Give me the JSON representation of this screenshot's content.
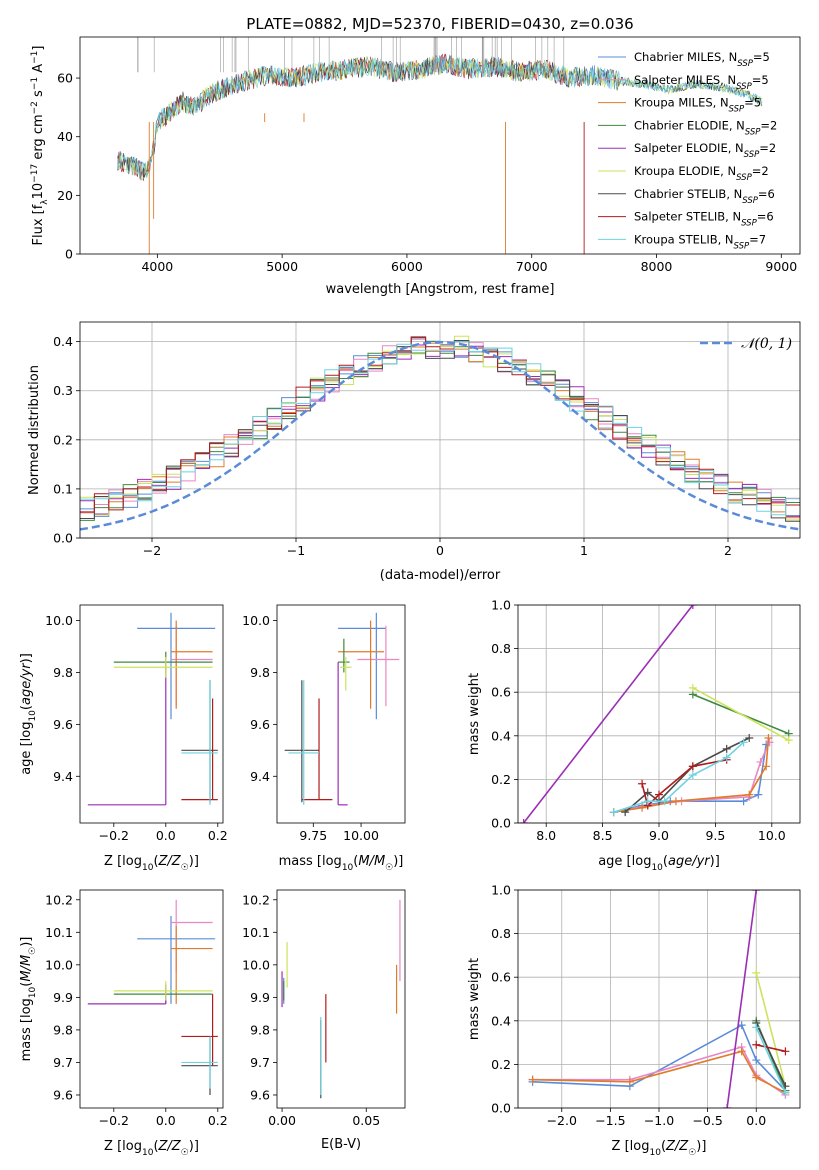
{
  "colors": {
    "chabrier_miles": "#5b8bd8",
    "salpeter_miles": "#e987c4",
    "kroupa_miles": "#e07b2c",
    "chabrier_elodie": "#3f8a3f",
    "salpeter_elodie": "#9a2fb5",
    "kroupa_elodie": "#cde35b",
    "chabrier_stelib": "#4a4a4a",
    "salpeter_stelib": "#b01c1c",
    "kroupa_stelib": "#6fd2e0",
    "normal": "#5b8bd8"
  },
  "chart_data": [
    {
      "id": "spectrum",
      "type": "line",
      "title": "PLATE=0882, MJD=52370, FIBERID=0430, z=0.036",
      "xlabel": "wavelength [Angstrom, rest frame]",
      "ylabel": "Flux [fλ10⁻¹⁷ erg cm⁻² s⁻¹ A⁻¹]",
      "xlim": [
        3380,
        9150
      ],
      "ylim": [
        0,
        74
      ],
      "xticks": [
        4000,
        5000,
        6000,
        7000,
        8000,
        9000
      ],
      "yticks": [
        0,
        20,
        40,
        60
      ],
      "legend_position": "top-right",
      "legend": [
        "Chabrier MILES, NSSP=5",
        "Salpeter MILES, NSSP=5",
        "Kroupa MILES, NSSP=5",
        "Chabrier ELODIE, NSSP=2",
        "Salpeter ELODIE, NSSP=2",
        "Kroupa ELODIE, NSSP=2",
        "Chabrier STELIB, NSSP=6",
        "Salpeter STELIB, NSSP=6",
        "Kroupa STELIB, NSSP=7"
      ],
      "continuum": {
        "x": [
          3680,
          3800,
          3900,
          3950,
          4000,
          4100,
          4200,
          4300,
          4400,
          4500,
          4700,
          4900,
          5100,
          5300,
          5500,
          5700,
          5900,
          6100,
          6300,
          6500,
          6700,
          6900,
          7100,
          7300,
          7500,
          7700,
          7900,
          8100,
          8300,
          8500,
          8700,
          8850
        ],
        "y": [
          32,
          30,
          28,
          30,
          45,
          48,
          52,
          50,
          54,
          56,
          59,
          61,
          60,
          62,
          63,
          64,
          62,
          63,
          65,
          63,
          64,
          62,
          63,
          60,
          61,
          59,
          58,
          56,
          58,
          57,
          55,
          52
        ]
      }
    },
    {
      "id": "residuals",
      "type": "histogram",
      "xlabel": "(data-model)/error",
      "ylabel": "Normed distribution",
      "xlim": [
        -2.5,
        2.5
      ],
      "ylim": [
        0,
        0.44
      ],
      "xticks": [
        -2,
        -1,
        0,
        1,
        2
      ],
      "yticks": [
        0.0,
        0.1,
        0.2,
        0.3,
        0.4
      ],
      "legend": [
        "𝒩(0, 1)"
      ],
      "legend_position": "top-right",
      "bin_width": 0.1,
      "bin_start": -2.5
    },
    {
      "id": "age_vs_z",
      "type": "errorbar",
      "xlabel": "Z [log10(Z/Z☉)]",
      "ylabel": "age  [log10(age/yr)]",
      "xlim": [
        -0.33,
        0.22
      ],
      "ylim": [
        9.22,
        10.06
      ],
      "xticks": [
        -0.2,
        0.0,
        0.2
      ],
      "yticks": [
        9.4,
        9.6,
        9.8,
        10.0
      ],
      "points": [
        {
          "model": "chabrier_miles",
          "x": 0.02,
          "xerr": [
            0.13,
            0.17
          ],
          "y": 9.97,
          "yerr": [
            0.35,
            0.06
          ]
        },
        {
          "model": "salpeter_miles",
          "x": 0.04,
          "xerr": [
            0.02,
            0.14
          ],
          "y": 9.85,
          "yerr": [
            0.18,
            0.13
          ]
        },
        {
          "model": "kroupa_miles",
          "x": 0.04,
          "xerr": [
            0.02,
            0.14
          ],
          "y": 9.88,
          "yerr": [
            0.22,
            0.12
          ]
        },
        {
          "model": "chabrier_elodie",
          "x": 0.0,
          "xerr": [
            0.2,
            0.18
          ],
          "y": 9.84,
          "yerr": [
            0.04,
            0.04
          ]
        },
        {
          "model": "salpeter_elodie",
          "x": 0.0,
          "xerr": [
            0.3,
            0.0
          ],
          "y": 9.29,
          "yerr": [
            0.0,
            0.55
          ]
        },
        {
          "model": "kroupa_elodie",
          "x": 0.0,
          "xerr": [
            0.2,
            0.18
          ],
          "y": 9.82,
          "yerr": [
            0.04,
            0.04
          ]
        },
        {
          "model": "chabrier_stelib",
          "x": 0.17,
          "xerr": [
            0.11,
            0.03
          ],
          "y": 9.5,
          "yerr": [
            0.2,
            0.27
          ]
        },
        {
          "model": "salpeter_stelib",
          "x": 0.18,
          "xerr": [
            0.12,
            0.02
          ],
          "y": 9.31,
          "yerr": [
            0.0,
            0.39
          ]
        },
        {
          "model": "kroupa_stelib",
          "x": 0.17,
          "xerr": [
            0.11,
            0.03
          ],
          "y": 9.49,
          "yerr": [
            0.2,
            0.28
          ]
        }
      ]
    },
    {
      "id": "age_vs_mass",
      "type": "errorbar",
      "xlabel": "mass [log10(M/M☉)]",
      "ylabel": "",
      "xlim": [
        9.56,
        10.23
      ],
      "ylim": [
        9.22,
        10.06
      ],
      "xticks": [
        9.75,
        10.0
      ],
      "yticks": [
        9.4,
        9.6,
        9.8,
        10.0
      ],
      "points": [
        {
          "model": "chabrier_miles",
          "x": 10.08,
          "xerr": [
            0.2,
            0.05
          ],
          "y": 9.97,
          "yerr": [
            0.35,
            0.06
          ]
        },
        {
          "model": "salpeter_miles",
          "x": 10.13,
          "xerr": [
            0.15,
            0.07
          ],
          "y": 9.85,
          "yerr": [
            0.18,
            0.13
          ]
        },
        {
          "model": "kroupa_miles",
          "x": 10.05,
          "xerr": [
            0.17,
            0.07
          ],
          "y": 9.88,
          "yerr": [
            0.22,
            0.12
          ]
        },
        {
          "model": "chabrier_elodie",
          "x": 9.91,
          "xerr": [
            0.03,
            0.03
          ],
          "y": 9.84,
          "yerr": [
            0.04,
            0.09
          ]
        },
        {
          "model": "salpeter_elodie",
          "x": 9.88,
          "xerr": [
            0.0,
            0.05
          ],
          "y": 9.29,
          "yerr": [
            0.0,
            0.55
          ]
        },
        {
          "model": "kroupa_elodie",
          "x": 9.92,
          "xerr": [
            0.03,
            0.03
          ],
          "y": 9.82,
          "yerr": [
            0.09,
            0.04
          ]
        },
        {
          "model": "chabrier_stelib",
          "x": 9.69,
          "xerr": [
            0.09,
            0.09
          ],
          "y": 9.5,
          "yerr": [
            0.2,
            0.27
          ]
        },
        {
          "model": "salpeter_stelib",
          "x": 9.78,
          "xerr": [
            0.09,
            0.07
          ],
          "y": 9.31,
          "yerr": [
            0.0,
            0.39
          ]
        },
        {
          "model": "kroupa_stelib",
          "x": 9.7,
          "xerr": [
            0.08,
            0.08
          ],
          "y": 9.49,
          "yerr": [
            0.2,
            0.28
          ]
        }
      ]
    },
    {
      "id": "mw_vs_age",
      "type": "line",
      "xlabel": "age  [log10(age/yr)]",
      "ylabel": "mass weight",
      "xlim": [
        7.75,
        10.25
      ],
      "ylim": [
        0,
        1
      ],
      "xticks": [
        8.0,
        8.5,
        9.0,
        9.5,
        10.0
      ],
      "yticks": [
        0.0,
        0.2,
        0.4,
        0.6,
        0.8,
        1.0
      ],
      "series": [
        {
          "model": "chabrier_miles",
          "x": [
            8.6,
            8.85,
            9.1,
            9.75,
            9.88,
            9.95
          ],
          "y": [
            0.05,
            0.08,
            0.1,
            0.1,
            0.13,
            0.36
          ]
        },
        {
          "model": "salpeter_miles",
          "x": [
            8.6,
            8.9,
            9.2,
            9.8,
            9.9,
            9.98
          ],
          "y": [
            0.05,
            0.08,
            0.1,
            0.12,
            0.28,
            0.37
          ]
        },
        {
          "model": "kroupa_miles",
          "x": [
            8.6,
            8.85,
            9.15,
            9.8,
            9.95,
            9.97
          ],
          "y": [
            0.05,
            0.07,
            0.1,
            0.13,
            0.26,
            0.39
          ]
        },
        {
          "model": "chabrier_elodie",
          "x": [
            9.3,
            10.15
          ],
          "y": [
            0.59,
            0.41
          ]
        },
        {
          "model": "salpeter_elodie",
          "x": [
            7.8,
            9.3
          ],
          "y": [
            0.0,
            1.0
          ]
        },
        {
          "model": "kroupa_elodie",
          "x": [
            9.3,
            10.15
          ],
          "y": [
            0.62,
            0.38
          ]
        },
        {
          "model": "chabrier_stelib",
          "x": [
            8.7,
            8.9,
            9.0,
            9.3,
            9.6,
            9.8
          ],
          "y": [
            0.05,
            0.14,
            0.1,
            0.26,
            0.34,
            0.39
          ]
        },
        {
          "model": "salpeter_stelib",
          "x": [
            8.85,
            8.9,
            9.0,
            9.3,
            9.6
          ],
          "y": [
            0.18,
            0.08,
            0.13,
            0.26,
            0.29
          ]
        },
        {
          "model": "kroupa_stelib",
          "x": [
            8.6,
            8.9,
            9.05,
            9.3,
            9.6,
            9.75
          ],
          "y": [
            0.05,
            0.1,
            0.1,
            0.22,
            0.3,
            0.37
          ]
        }
      ]
    },
    {
      "id": "mass_vs_z",
      "type": "errorbar",
      "xlabel": "Z [log10(Z/Z☉)]",
      "ylabel": "mass [log10(M/M☉)]",
      "xlim": [
        -0.33,
        0.22
      ],
      "ylim": [
        9.56,
        10.23
      ],
      "xticks": [
        -0.2,
        0.0,
        0.2
      ],
      "yticks": [
        9.6,
        9.7,
        9.8,
        9.9,
        10.0,
        10.1,
        10.2
      ],
      "points": [
        {
          "model": "chabrier_miles",
          "x": 0.02,
          "xerr": [
            0.13,
            0.17
          ],
          "y": 10.08,
          "yerr": [
            0.2,
            0.07
          ]
        },
        {
          "model": "salpeter_miles",
          "x": 0.04,
          "xerr": [
            0.02,
            0.14
          ],
          "y": 10.13,
          "yerr": [
            0.15,
            0.07
          ]
        },
        {
          "model": "kroupa_miles",
          "x": 0.04,
          "xerr": [
            0.02,
            0.14
          ],
          "y": 10.05,
          "yerr": [
            0.17,
            0.07
          ]
        },
        {
          "model": "chabrier_elodie",
          "x": 0.0,
          "xerr": [
            0.2,
            0.18
          ],
          "y": 9.91,
          "yerr": [
            0.03,
            0.03
          ]
        },
        {
          "model": "salpeter_elodie",
          "x": 0.0,
          "xerr": [
            0.3,
            0.0
          ],
          "y": 9.88,
          "yerr": [
            0.0,
            0.05
          ]
        },
        {
          "model": "kroupa_elodie",
          "x": 0.0,
          "xerr": [
            0.2,
            0.18
          ],
          "y": 9.92,
          "yerr": [
            0.03,
            0.03
          ]
        },
        {
          "model": "chabrier_stelib",
          "x": 0.17,
          "xerr": [
            0.11,
            0.03
          ],
          "y": 9.69,
          "yerr": [
            0.09,
            0.09
          ]
        },
        {
          "model": "salpeter_stelib",
          "x": 0.18,
          "xerr": [
            0.12,
            0.02
          ],
          "y": 9.78,
          "yerr": [
            0.09,
            0.13
          ]
        },
        {
          "model": "kroupa_stelib",
          "x": 0.17,
          "xerr": [
            0.11,
            0.03
          ],
          "y": 9.7,
          "yerr": [
            0.08,
            0.08
          ]
        }
      ]
    },
    {
      "id": "mass_vs_ebv",
      "type": "errorbar",
      "xlabel": "E(B-V)",
      "ylabel": "",
      "xlim": [
        -0.003,
        0.073
      ],
      "ylim": [
        9.56,
        10.23
      ],
      "xticks": [
        0.0,
        0.05
      ],
      "yticks": [
        9.6,
        9.7,
        9.8,
        9.9,
        10.0,
        10.1,
        10.2
      ],
      "points": [
        {
          "model": "chabrier_miles",
          "x": 0.001,
          "xerr": [
            0,
            0
          ],
          "y": 9.92,
          "yerr": [
            0.04,
            0.04
          ]
        },
        {
          "model": "salpeter_miles",
          "x": 0.07,
          "xerr": [
            0,
            0
          ],
          "y": 10.07,
          "yerr": [
            0.12,
            0.13
          ]
        },
        {
          "model": "kroupa_miles",
          "x": 0.068,
          "xerr": [
            0,
            0
          ],
          "y": 9.92,
          "yerr": [
            0.07,
            0.08
          ]
        },
        {
          "model": "chabrier_elodie",
          "x": 0.001,
          "xerr": [
            0,
            0
          ],
          "y": 9.92,
          "yerr": [
            0.03,
            0.03
          ]
        },
        {
          "model": "salpeter_elodie",
          "x": 0.0,
          "xerr": [
            0,
            0
          ],
          "y": 9.92,
          "yerr": [
            0.05,
            0.06
          ]
        },
        {
          "model": "kroupa_elodie",
          "x": 0.003,
          "xerr": [
            0,
            0
          ],
          "y": 10.0,
          "yerr": [
            0.07,
            0.07
          ]
        },
        {
          "model": "chabrier_stelib",
          "x": 0.023,
          "xerr": [
            0,
            0
          ],
          "y": 9.71,
          "yerr": [
            0.12,
            0.12
          ]
        },
        {
          "model": "salpeter_stelib",
          "x": 0.026,
          "xerr": [
            0,
            0
          ],
          "y": 9.78,
          "yerr": [
            0.08,
            0.13
          ]
        },
        {
          "model": "kroupa_stelib",
          "x": 0.023,
          "xerr": [
            0,
            0
          ],
          "y": 9.72,
          "yerr": [
            0.12,
            0.12
          ]
        }
      ]
    },
    {
      "id": "mw_vs_z",
      "type": "line",
      "xlabel": "Z [log10(Z/Z☉)]",
      "ylabel": "mass weight",
      "xlim": [
        -2.45,
        0.45
      ],
      "ylim": [
        0,
        1
      ],
      "xticks": [
        -2.0,
        -1.5,
        -1.0,
        -0.5,
        0.0
      ],
      "yticks": [
        0.0,
        0.2,
        0.4,
        0.6,
        0.8,
        1.0
      ],
      "series": [
        {
          "model": "chabrier_miles",
          "x": [
            -2.3,
            -1.3,
            -0.15,
            0.0,
            0.3
          ],
          "y": [
            0.12,
            0.1,
            0.38,
            0.22,
            0.08
          ]
        },
        {
          "model": "salpeter_miles",
          "x": [
            -2.3,
            -1.3,
            -0.15,
            0.0,
            0.3
          ],
          "y": [
            0.13,
            0.13,
            0.28,
            0.15,
            0.06
          ]
        },
        {
          "model": "kroupa_miles",
          "x": [
            -2.3,
            -1.3,
            -0.15,
            0.0,
            0.3
          ],
          "y": [
            0.13,
            0.12,
            0.26,
            0.14,
            0.07
          ]
        },
        {
          "model": "chabrier_elodie",
          "x": [
            0.0,
            0.3
          ],
          "y": [
            0.4,
            0.08
          ]
        },
        {
          "model": "salpeter_elodie",
          "x": [
            -0.3,
            0.0
          ],
          "y": [
            0.0,
            1.0
          ]
        },
        {
          "model": "kroupa_elodie",
          "x": [
            0.0,
            0.3
          ],
          "y": [
            0.62,
            0.1
          ]
        },
        {
          "model": "chabrier_stelib",
          "x": [
            0.0,
            0.3
          ],
          "y": [
            0.39,
            0.1
          ]
        },
        {
          "model": "salpeter_stelib",
          "x": [
            0.0,
            0.3
          ],
          "y": [
            0.29,
            0.26
          ]
        },
        {
          "model": "kroupa_stelib",
          "x": [
            0.0,
            0.3
          ],
          "y": [
            0.37,
            0.07
          ]
        }
      ]
    }
  ]
}
